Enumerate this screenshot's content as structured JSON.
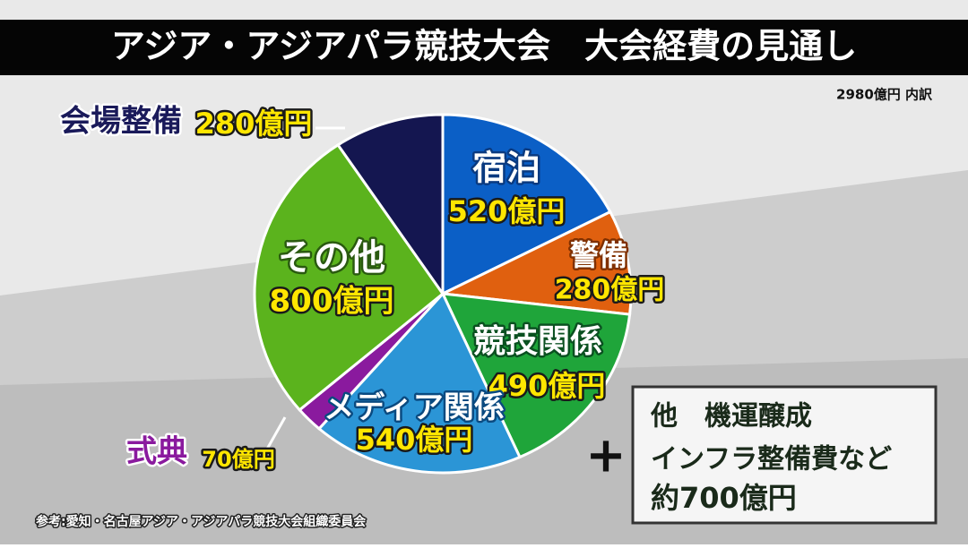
{
  "chart_data": {
    "type": "pie",
    "title": "アジア・アジアパラ競技大会　大会経費の見通し",
    "subtitle": "2980億円 内訳",
    "categories": [
      "宿泊",
      "警備",
      "競技関係",
      "メディア関係",
      "式典",
      "その他",
      "会場整備"
    ],
    "values": [
      520,
      280,
      490,
      540,
      70,
      800,
      280
    ],
    "value_labels": [
      "520億円",
      "280億円",
      "490億円",
      "540億円",
      "70億円",
      "800億円",
      "280億円"
    ],
    "colors": [
      "#0b5fc6",
      "#e0600f",
      "#1fa53a",
      "#2b95d6",
      "#8a1a9e",
      "#5bb31d",
      "#141650"
    ],
    "note": {
      "lines": [
        "他　機運醸成",
        "インフラ整備費など",
        "約700億円"
      ]
    },
    "source": "参考:愛知・名古屋アジア・アジアパラ競技大会組織委員会"
  }
}
